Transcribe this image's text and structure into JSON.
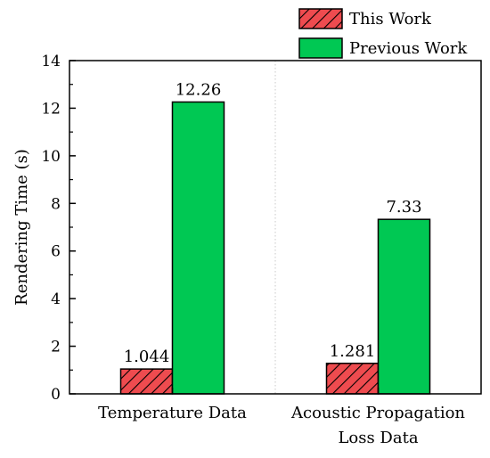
{
  "chart_data": {
    "type": "bar",
    "categories": [
      [
        "Temperature Data"
      ],
      [
        "Acoustic Propagation",
        "Loss Data"
      ]
    ],
    "series": [
      {
        "name": "This Work",
        "values": [
          1.044,
          1.281
        ],
        "labels": [
          "1.044",
          "1.281"
        ],
        "color": "#ee4b4f",
        "pattern": "hatched"
      },
      {
        "name": "Previous Work",
        "values": [
          12.26,
          7.33
        ],
        "labels": [
          "12.26",
          "7.33"
        ],
        "color": "#00c853",
        "pattern": "solid"
      }
    ],
    "ylabel": "Rendering Time (s)",
    "xlabel": "",
    "ylim": [
      0,
      14
    ],
    "yticks": [
      0,
      2,
      4,
      6,
      8,
      10,
      12,
      14
    ],
    "legend_position": "top-right, outside plot",
    "grid": false,
    "category_separator": "dotted vertical line"
  }
}
